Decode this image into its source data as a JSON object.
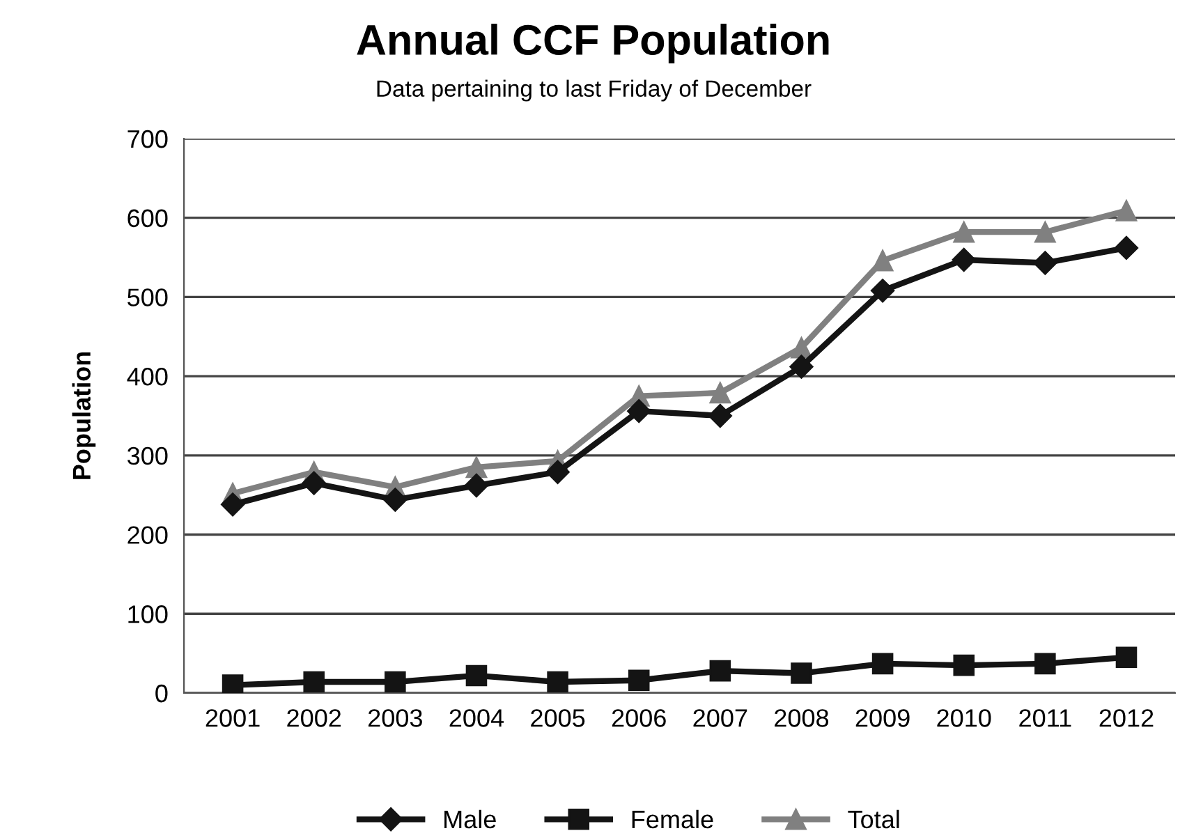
{
  "chart_data": {
    "type": "line",
    "title": "Annual CCF Population",
    "subtitle": "Data pertaining to last Friday of December",
    "ylabel": "Population",
    "categories": [
      "2001",
      "2002",
      "2003",
      "2004",
      "2005",
      "2006",
      "2007",
      "2008",
      "2009",
      "2010",
      "2011",
      "2012"
    ],
    "series": [
      {
        "name": "Male",
        "color": "#141414",
        "marker": "diamond",
        "values": [
          238,
          265,
          244,
          262,
          279,
          356,
          350,
          412,
          508,
          547,
          543,
          562
        ]
      },
      {
        "name": "Female",
        "color": "#141414",
        "marker": "square",
        "values": [
          10,
          14,
          14,
          22,
          14,
          16,
          28,
          25,
          37,
          35,
          37,
          45
        ]
      },
      {
        "name": "Total",
        "color": "#808080",
        "marker": "triangle",
        "values": [
          252,
          279,
          260,
          285,
          293,
          375,
          379,
          436,
          546,
          582,
          582,
          609
        ]
      }
    ],
    "ylim": [
      0,
      700
    ],
    "yticks": [
      0,
      100,
      200,
      300,
      400,
      500,
      600,
      700
    ],
    "grid": "y",
    "legend": "bottom",
    "line_style": "solid"
  }
}
